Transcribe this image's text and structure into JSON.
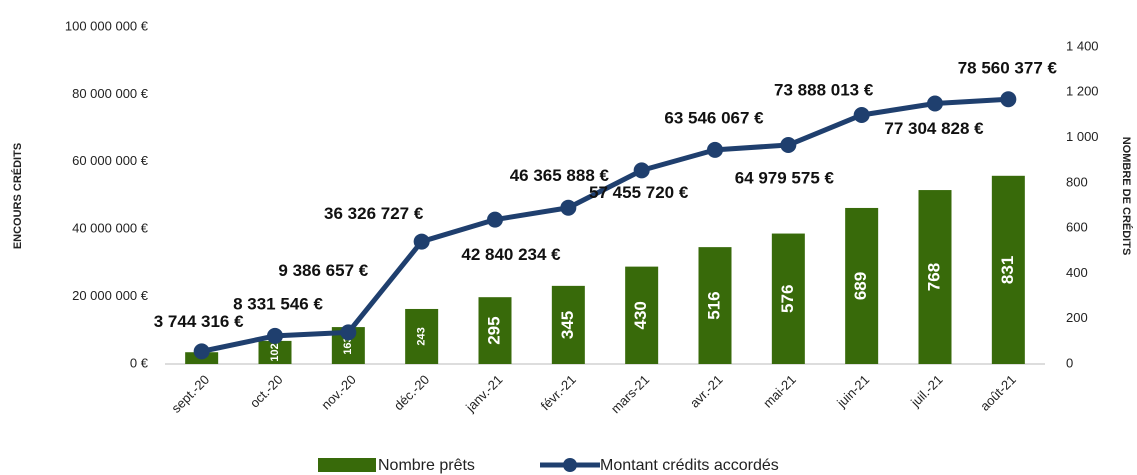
{
  "chart_data": {
    "type": "bar-line",
    "categories": [
      "sept.-20",
      "oct.-20",
      "nov.-20",
      "déc.-20",
      "janv.-21",
      "févr.-21",
      "mars-21",
      "avr.-21",
      "mai-21",
      "juin-21",
      "juil.-21",
      "août-21"
    ],
    "y_label": "ENCOURS CRÉDITS",
    "y2_label": "NOMBRE DE CRÉDITS",
    "series": [
      {
        "name": "Nombre prêts",
        "type": "bar",
        "axis": "y2",
        "color": "#386a0a",
        "values": [
          52,
          102,
          163,
          243,
          295,
          345,
          430,
          516,
          576,
          689,
          768,
          831
        ]
      },
      {
        "name": "Montant crédits accordés",
        "type": "line",
        "axis": "y",
        "color": "#1f3f6e",
        "values": [
          3744316,
          8331546,
          9386657,
          36326727,
          42840234,
          46365888,
          57455720,
          63546067,
          64979575,
          73888013,
          77304828,
          78560377
        ],
        "value_labels": [
          "3 744 316 €",
          "8 331 546 €",
          "9 386 657 €",
          "36 326 727 €",
          "42 840 234 €",
          "46 365 888 €",
          "57 455 720 €",
          "63 546 067 €",
          "64 979 575 €",
          "73 888 013 €",
          "77 304 828 €",
          "78 560 377 €"
        ]
      }
    ],
    "ylim": [
      0,
      100000000
    ],
    "yticks": [
      {
        "value": 0,
        "label": "0 €"
      },
      {
        "value": 20000000,
        "label": "20 000 000 €"
      },
      {
        "value": 40000000,
        "label": "40 000 000 €"
      },
      {
        "value": 60000000,
        "label": "60 000 000 €"
      },
      {
        "value": 80000000,
        "label": "80 000 000 €"
      },
      {
        "value": 100000000,
        "label": "100 000 000 €"
      }
    ],
    "y2lim": [
      0,
      1488
    ],
    "y2ticks": [
      0,
      200,
      400,
      600,
      800,
      {
        "value": 1000,
        "label": "1 000"
      },
      {
        "value": 1200,
        "label": "1 200"
      },
      {
        "value": 1400,
        "label": "1 400"
      }
    ],
    "legend": "bottom"
  }
}
